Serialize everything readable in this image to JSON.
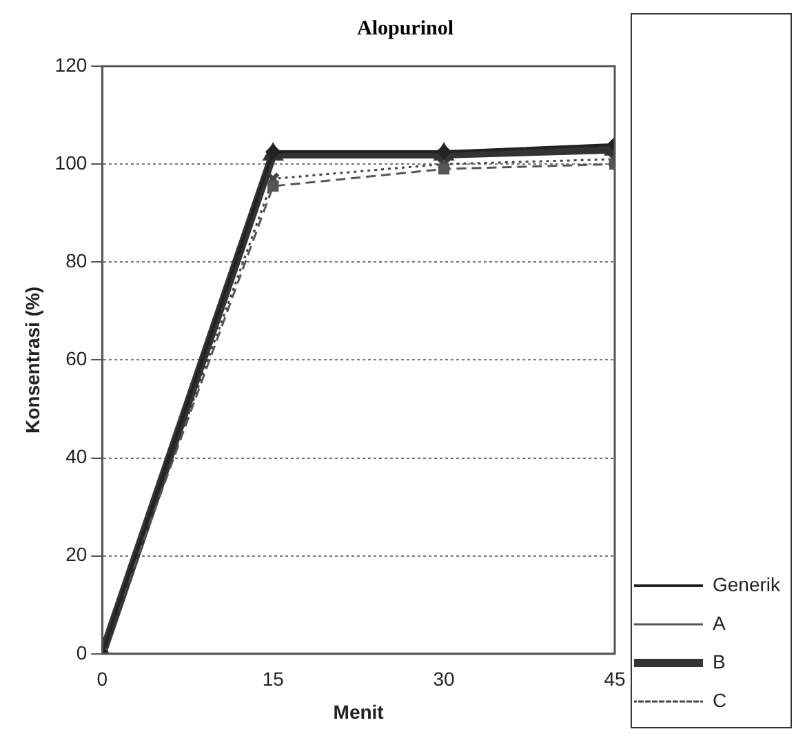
{
  "chart_data": {
    "type": "line",
    "title": "Alopurinol",
    "xlabel": "Menit",
    "ylabel": "Konsentrasi (%)",
    "x": [
      0,
      15,
      30,
      45
    ],
    "xlim": [
      0,
      45
    ],
    "xticks": [
      0,
      15,
      30,
      45
    ],
    "ylim": [
      0,
      120
    ],
    "yticks": [
      0,
      20,
      40,
      60,
      80,
      100,
      120
    ],
    "grid": "y",
    "legend": "bottom right",
    "series": [
      {
        "name": "Generik",
        "color": "#222222",
        "values": [
          0,
          102.5,
          102.5,
          104
        ],
        "marker": "diamond",
        "line_style": "solid"
      },
      {
        "name": "A",
        "color": "#555555",
        "values": [
          0,
          95.5,
          99,
          100
        ],
        "marker": "square",
        "line_style": "dashed"
      },
      {
        "name": "B",
        "color": "#333333",
        "values": [
          0,
          102,
          102,
          103
        ],
        "marker": "triangle",
        "line_style": "solid"
      },
      {
        "name": "C",
        "color": "#444444",
        "values": [
          0,
          97,
          100,
          101
        ],
        "marker": "cross",
        "line_style": "dotted"
      }
    ]
  }
}
